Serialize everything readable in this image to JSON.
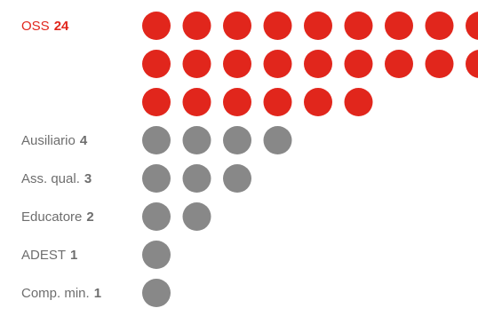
{
  "chart_data": {
    "type": "dot-matrix",
    "colors": {
      "highlight": "#e1261c",
      "default": "#888888",
      "label_default": "#6e6e6e"
    },
    "rows": [
      {
        "label": "OSS",
        "value": 24,
        "highlight": true
      },
      {
        "label": "Ausiliario",
        "value": 4,
        "highlight": false
      },
      {
        "label": "Ass. qual.",
        "value": 3,
        "highlight": false
      },
      {
        "label": "Educatore",
        "value": 2,
        "highlight": false
      },
      {
        "label": "ADEST",
        "value": 1,
        "highlight": false
      },
      {
        "label": "Comp. min.",
        "value": 1,
        "highlight": false
      }
    ]
  }
}
